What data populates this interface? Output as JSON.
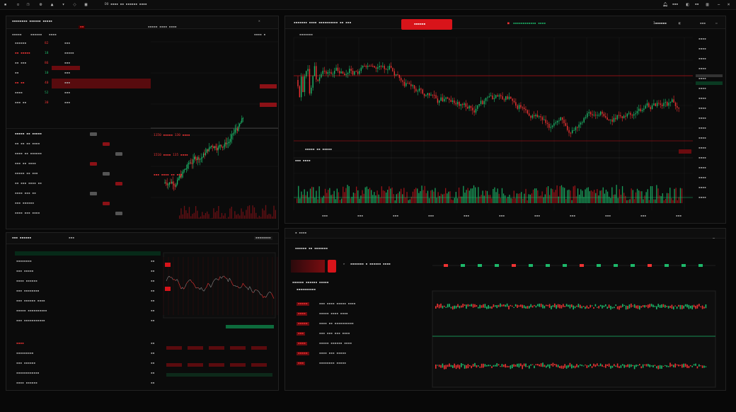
{
  "topbar": {
    "left_text": "DO ▪▪▪▪ ▪▪ ▪▪▪▪▪▪ ▪▪▪▪",
    "right_labels": [
      "▪▪▪",
      "▪▪"
    ]
  },
  "panel_a": {
    "title": "▪▪▪▪▪▪▪▪ ▪▪▪▪▪▪ ▪▪▪▪▪",
    "tabs": [
      "▪▪▪▪▪",
      "▪▪▪▪▪▪",
      "▪▪▪▪"
    ],
    "header_right": "▪▪▪▪▪ ▪▪▪▪ ▪▪▪▪",
    "rows": [
      {
        "a": "▪▪▪▪▪▪",
        "b": "82",
        "c": "▪▪▪"
      },
      {
        "a": "▪▪ ▪▪▪▪▪",
        "b": "18",
        "c": "▪▪▪▪▪"
      },
      {
        "a": "▪▪ ▪▪▪",
        "b": "86",
        "c": "▪▪▪"
      },
      {
        "a": "▪▪",
        "b": "10",
        "c": "▪▪▪"
      },
      {
        "a": "▪▪ ▪▪",
        "b": "40",
        "c": "▪▪▪"
      },
      {
        "a": "▪▪▪▪",
        "b": "52",
        "c": "▪▪▪"
      },
      {
        "a": "▪▪▪ ▪▪",
        "b": "30",
        "c": "▪▪▪"
      }
    ],
    "order_lines": [
      "▪▪▪▪▪ ▪▪ ▪▪▪▪▪",
      "▪▪ ▪▪ ▪▪ ▪▪▪▪",
      "▪▪▪▪ ▪▪ ▪▪▪▪▪▪",
      "▪▪▪ ▪▪ ▪▪▪▪",
      "▪▪▪▪▪ ▪▪ ▪▪▪",
      "▪▪ ▪▪▪ ▪▪▪▪ ▪▪",
      "▪▪▪▪ ▪▪▪ ▪▪",
      "▪▪▪ ▪▪▪▪▪▪",
      "▪▪▪▪ ▪▪▪ ▪▪▪▪"
    ],
    "red_readout": [
      "1150 ▪▪▪▪▪ 130 ▪▪▪▪",
      "1510 ▪▪▪▪ 135 ▪▪▪▪",
      "▪▪▪ ▪▪▪▪ ▪▪ ▪▪▪"
    ]
  },
  "panel_b": {
    "title": "▪▪▪▪▪▪▪ ▪▪▪▪ ▪▪▪▪▪▪▪▪▪▪ ▪▪ ▪▪▪",
    "alert_button": "▪▪▪▪▪▪",
    "mid_label": "▪▪▪▪▪▪▪▪▪▪▪▪ ▪▪▪▪",
    "price_readout": "1▪▪▪▪▪▪",
    "stat_label": "▪▪▪▪▪ ▪▪ ▪▪▪▪▪",
    "volume_label": "▪▪▪ ▪▪▪▪",
    "x_ticks": [
      "▪▪▪",
      "▪▪▪",
      "▪▪▪",
      "▪▪▪",
      "▪▪▪",
      "▪▪▪",
      "▪▪▪",
      "▪▪▪",
      "▪▪▪",
      "▪▪▪",
      "▪▪▪"
    ],
    "y_ticks": [
      "▪▪▪▪",
      "▪▪▪▪",
      "▪▪▪▪",
      "▪▪▪▪",
      "▪▪▪▪",
      "▪▪▪▪",
      "▪▪▪▪",
      "▪▪▪▪",
      "▪▪▪▪",
      "▪▪▪▪",
      "▪▪▪▪",
      "▪▪▪▪",
      "▪▪▪▪",
      "▪▪▪▪",
      "▪▪▪▪",
      "▪▪▪▪",
      "▪▪▪▪"
    ]
  },
  "panel_c": {
    "title": "▪▪▪ ▪▪▪▪▪▪",
    "header_right": "▪▪▪▪▪▪▪▪",
    "rows": [
      "▪▪▪▪▪▪▪▪",
      "▪▪▪ ▪▪▪▪▪",
      "▪▪▪▪ ▪▪▪▪▪▪",
      "▪▪▪ ▪▪▪▪▪▪▪▪",
      "▪▪▪ ▪▪▪▪▪▪ ▪▪▪▪",
      "▪▪▪▪▪ ▪▪▪▪▪▪▪▪▪▪",
      "▪▪▪ ▪▪▪▪▪▪▪▪▪▪▪",
      "▪▪▪▪",
      "▪▪▪▪▪▪▪▪▪",
      "▪▪▪ ▪▪▪▪▪▪",
      "▪▪▪▪▪▪▪▪▪▪▪▪",
      "▪▪▪▪ ▪▪▪▪▪▪"
    ]
  },
  "panel_d": {
    "title": "▪▪▪▪▪▪ ▪▪ ▪▪▪▪▪▪▪",
    "sub_title": "▪▪▪▪▪▪ ▪▪▪▪▪▪ ▪▪▪▪▪",
    "table_rows": [
      {
        "tag": "▪▪▪▪▪",
        "txt": "▪▪▪ ▪▪▪▪ ▪▪▪▪▪ ▪▪▪▪"
      },
      {
        "tag": "▪▪▪▪",
        "txt": "▪▪▪▪▪ ▪▪▪▪ ▪▪▪▪"
      },
      {
        "tag": "▪▪▪▪▪",
        "txt": "▪▪▪▪ ▪▪ ▪▪▪▪▪▪▪▪▪▪"
      },
      {
        "tag": "▪▪▪",
        "txt": "▪▪▪ ▪▪▪ ▪▪▪ ▪▪▪▪"
      },
      {
        "tag": "▪▪▪▪",
        "txt": "▪▪▪▪▪ ▪▪▪▪▪▪ ▪▪▪▪"
      },
      {
        "tag": "▪▪▪▪▪",
        "txt": "▪▪▪▪ ▪▪▪ ▪▪▪▪▪"
      },
      {
        "tag": "▪▪▪",
        "txt": "▪▪▪▪▪▪▪▪ ▪▪▪▪▪"
      }
    ]
  },
  "colors": {
    "accent_red": "#d8141a",
    "accent_green": "#1db86a",
    "bg": "#080808"
  }
}
